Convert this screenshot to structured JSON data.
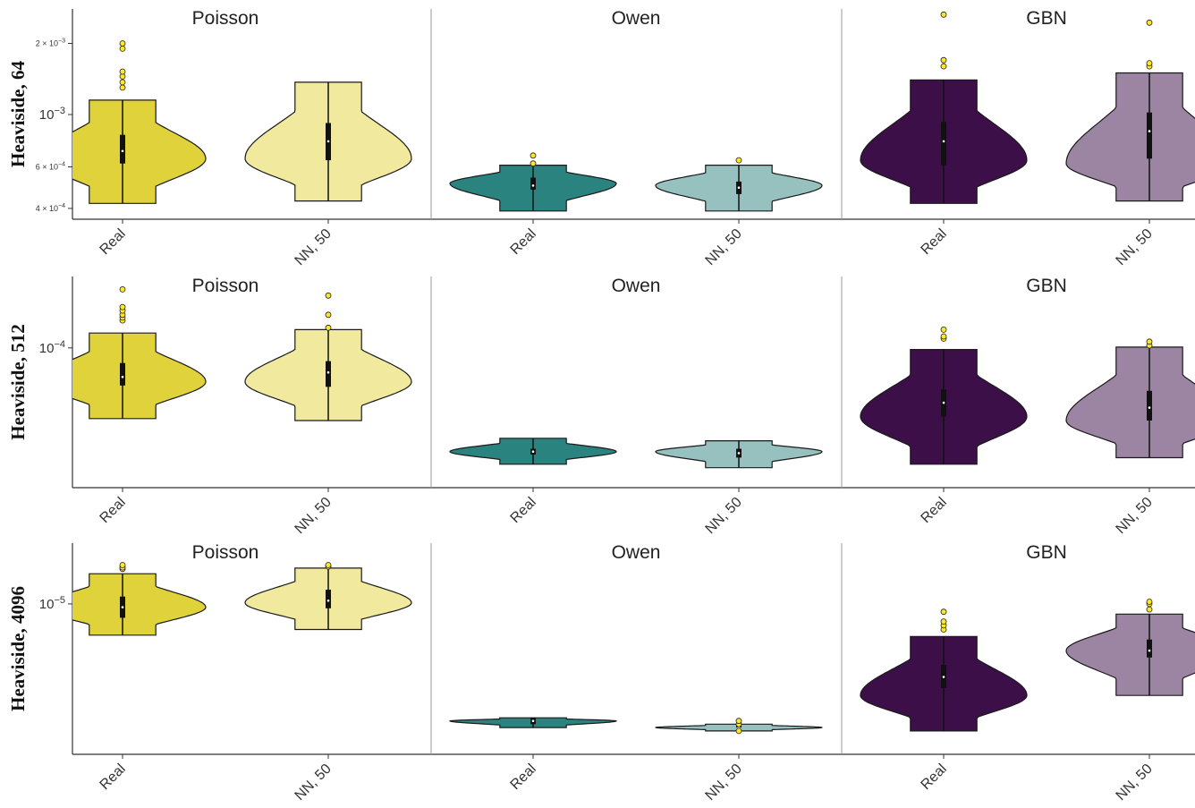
{
  "chart_data": {
    "type": "violin",
    "y_scale": "log",
    "grid": false,
    "colors": {
      "Poisson": {
        "Real": "#e0d23b",
        "NN, 50": "#f0e99e"
      },
      "Owen": {
        "Real": "#2a837e",
        "NN, 50": "#96c1bf"
      },
      "GBN": {
        "Real": "#3d0f48",
        "NN, 50": "#9c84a3"
      },
      "outlier": "#fde725",
      "outline": "#1a1a1a"
    },
    "column_titles": [
      "Poisson",
      "Owen",
      "GBN"
    ],
    "categories": [
      "Real",
      "NN, 50"
    ],
    "rows": [
      {
        "label": "Heaviside, 64",
        "y_ticks": [
          {
            "value": 0.0004,
            "base": "4 × 10",
            "exp": "−4",
            "small": true
          },
          {
            "value": 0.0006,
            "base": "6 × 10",
            "exp": "−4",
            "small": true
          },
          {
            "value": 0.001,
            "base": "10",
            "exp": "−3",
            "small": false
          },
          {
            "value": 0.002,
            "base": "2 × 10",
            "exp": "−3",
            "small": true
          }
        ],
        "ylim": [
          0.00036,
          0.0028
        ],
        "panels": [
          {
            "group": "Poisson",
            "violins": [
              {
                "category": "Real",
                "min": 0.00042,
                "max": 0.00115,
                "q1": 0.00062,
                "median": 0.0007,
                "q3": 0.00082,
                "peak": 0.00065,
                "outliers": [
                  0.0013,
                  0.00137,
                  0.00145,
                  0.00152,
                  0.0019,
                  0.002
                ]
              },
              {
                "category": "NN, 50",
                "min": 0.00043,
                "max": 0.00137,
                "q1": 0.00064,
                "median": 0.00077,
                "q3": 0.00092,
                "peak": 0.00065,
                "outliers": []
              }
            ]
          },
          {
            "group": "Owen",
            "violins": [
              {
                "category": "Real",
                "min": 0.00039,
                "max": 0.00061,
                "q1": 0.00048,
                "median": 0.0005,
                "q3": 0.00054,
                "peak": 0.00051,
                "outliers": [
                  0.00062,
                  0.00067
                ]
              },
              {
                "category": "NN, 50",
                "min": 0.00039,
                "max": 0.00061,
                "q1": 0.00046,
                "median": 0.00049,
                "q3": 0.00052,
                "peak": 0.0005,
                "outliers": [
                  0.00064
                ]
              }
            ]
          },
          {
            "group": "GBN",
            "violins": [
              {
                "category": "Real",
                "min": 0.00042,
                "max": 0.0014,
                "q1": 0.00061,
                "median": 0.00077,
                "q3": 0.00093,
                "peak": 0.00064,
                "outliers": [
                  0.0016,
                  0.0017,
                  0.00265
                ]
              },
              {
                "category": "NN, 50",
                "min": 0.00043,
                "max": 0.0015,
                "q1": 0.00065,
                "median": 0.00085,
                "q3": 0.00102,
                "peak": 0.00062,
                "outliers": [
                  0.0016,
                  0.00165,
                  0.00245
                ]
              }
            ]
          }
        ]
      },
      {
        "label": "Heaviside, 512",
        "y_ticks": [
          {
            "value": 0.0001,
            "base": "10",
            "exp": "−4",
            "small": false
          }
        ],
        "ylim": [
          1.8e-05,
          0.00024
        ],
        "panels": [
          {
            "group": "Poisson",
            "violins": [
              {
                "category": "Real",
                "min": 4.2e-05,
                "max": 0.00012,
                "q1": 6.3e-05,
                "median": 7e-05,
                "q3": 8.3e-05,
                "peak": 6.6e-05,
                "outliers": [
                  0.00014,
                  0.000145,
                  0.00015,
                  0.000158,
                  0.000165,
                  0.000205
                ]
              },
              {
                "category": "NN, 50",
                "min": 4.1e-05,
                "max": 0.000125,
                "q1": 6.2e-05,
                "median": 7.4e-05,
                "q3": 8.5e-05,
                "peak": 6.6e-05,
                "outliers": [
                  0.000128,
                  0.00015,
                  0.00019
                ]
              }
            ]
          },
          {
            "group": "Owen",
            "violins": [
              {
                "category": "Real",
                "min": 2.4e-05,
                "max": 3.3e-05,
                "q1": 2.7e-05,
                "median": 2.8e-05,
                "q3": 2.9e-05,
                "peak": 2.8e-05,
                "outliers": []
              },
              {
                "category": "NN, 50",
                "min": 2.3e-05,
                "max": 3.2e-05,
                "q1": 2.6e-05,
                "median": 2.75e-05,
                "q3": 2.9e-05,
                "peak": 2.8e-05,
                "outliers": []
              }
            ]
          },
          {
            "group": "GBN",
            "violins": [
              {
                "category": "Real",
                "min": 2.4e-05,
                "max": 9.8e-05,
                "q1": 4.3e-05,
                "median": 5.1e-05,
                "q3": 6e-05,
                "peak": 4.3e-05,
                "outliers": [
                  0.000112,
                  0.000115,
                  0.000125
                ]
              },
              {
                "category": "NN, 50",
                "min": 2.6e-05,
                "max": 0.000101,
                "q1": 4.1e-05,
                "median": 4.8e-05,
                "q3": 5.9e-05,
                "peak": 4.1e-05,
                "outliers": [
                  0.000103,
                  0.000108
                ]
              }
            ]
          }
        ]
      },
      {
        "label": "Heaviside, 4096",
        "y_ticks": [
          {
            "value": 1e-05,
            "base": "10",
            "exp": "−5",
            "small": false
          }
        ],
        "ylim": [
          2.5e-06,
          1.75e-05
        ],
        "panels": [
          {
            "group": "Poisson",
            "violins": [
              {
                "category": "Real",
                "min": 7.5e-06,
                "max": 1.32e-05,
                "q1": 8.8e-06,
                "median": 9.7e-06,
                "q3": 1.07e-05,
                "peak": 9.7e-06,
                "outliers": [
                  1.38e-05,
                  1.4e-05,
                  1.43e-05
                ]
              },
              {
                "category": "NN, 50",
                "min": 7.9e-06,
                "max": 1.39e-05,
                "q1": 9.6e-06,
                "median": 1.03e-05,
                "q3": 1.14e-05,
                "peak": 1.01e-05,
                "outliers": [
                  1.41e-05,
                  1.43e-05
                ]
              }
            ]
          },
          {
            "group": "Owen",
            "violins": [
              {
                "category": "Real",
                "min": 3.2e-06,
                "max": 3.5e-06,
                "q1": 3.3e-06,
                "median": 3.4e-06,
                "q3": 3.5e-06,
                "peak": 3.4e-06,
                "outliers": []
              },
              {
                "category": "NN, 50",
                "min": 3.1e-06,
                "max": 3.3e-06,
                "q1": 3.2e-06,
                "median": 3.2e-06,
                "q3": 3.3e-06,
                "peak": 3.2e-06,
                "outliers": [
                  3.3e-06,
                  3.4e-06,
                  3.1e-06
                ]
              }
            ]
          },
          {
            "group": "GBN",
            "violins": [
              {
                "category": "Real",
                "min": 3.1e-06,
                "max": 7.4e-06,
                "q1": 4.6e-06,
                "median": 5.1e-06,
                "q3": 5.7e-06,
                "peak": 4.3e-06,
                "outliers": [
                  7.9e-06,
                  8.2e-06,
                  8.5e-06,
                  9.3e-06
                ]
              },
              {
                "category": "NN, 50",
                "min": 4.3e-06,
                "max": 9.1e-06,
                "q1": 6.1e-06,
                "median": 6.5e-06,
                "q3": 7.2e-06,
                "peak": 6.5e-06,
                "outliers": [
                  9.5e-06,
                  1e-05,
                  1.02e-05
                ]
              }
            ]
          }
        ]
      }
    ]
  }
}
